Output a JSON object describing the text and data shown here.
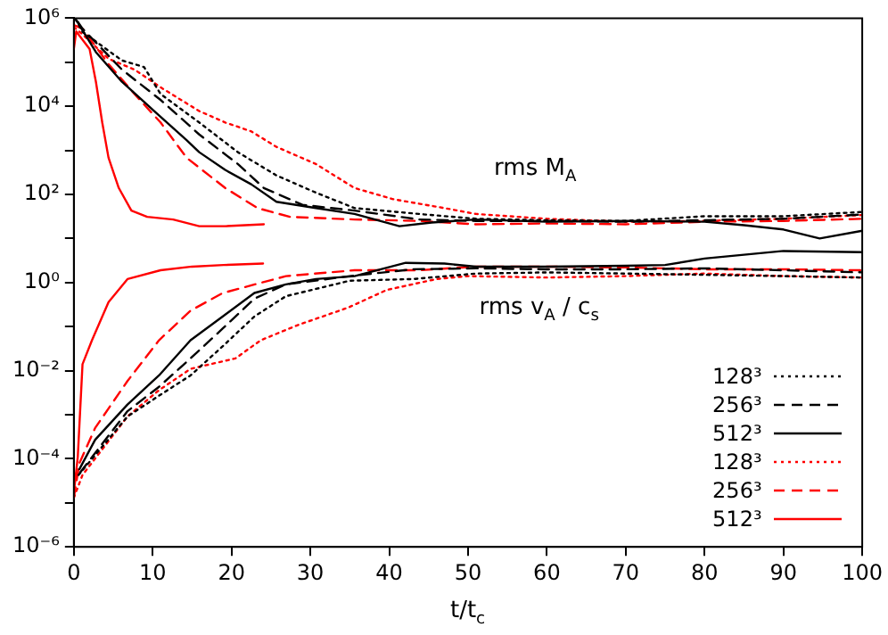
{
  "chart_data": {
    "type": "line",
    "xlabel": "t/t$_{c}$",
    "xlim": [
      0,
      100
    ],
    "xticks": [
      0,
      10,
      20,
      30,
      40,
      50,
      60,
      70,
      80,
      90,
      100
    ],
    "log": "y",
    "ylim": [
      1e-06,
      1000000.0
    ],
    "yticks": [
      {
        "value": 1e-06,
        "label": "10⁻⁶"
      },
      {
        "value": 1e-05,
        "label": null
      },
      {
        "value": 0.0001,
        "label": "10⁻⁴"
      },
      {
        "value": 0.001,
        "label": null
      },
      {
        "value": 0.01,
        "label": "10⁻²"
      },
      {
        "value": 0.1,
        "label": null
      },
      {
        "value": 1,
        "label": "10⁰"
      },
      {
        "value": 10,
        "label": null
      },
      {
        "value": 100,
        "label": "10²"
      },
      {
        "value": 1000,
        "label": null
      },
      {
        "value": 10000,
        "label": "10⁴"
      },
      {
        "value": 100000,
        "label": null
      },
      {
        "value": 1000000,
        "label": "10⁶"
      }
    ],
    "legend": "bottom right",
    "marker": "none",
    "annotations": [
      "rms M$_{A}$",
      "rms v$_{A}$ / c$_{s}$"
    ],
    "series": [
      {
        "name": "128³",
        "color": "#000000",
        "line_style": "dotted",
        "x": [
          0.2,
          1.1,
          6.1,
          8.9,
          11,
          15.9,
          20.8,
          25.7,
          30.7,
          35.6,
          43.8,
          51,
          60,
          70,
          80,
          90,
          100
        ],
        "values": [
          960000,
          490000,
          110000,
          78000,
          19000,
          4300,
          910,
          270,
          110,
          49,
          36,
          28,
          26,
          25,
          32,
          32,
          40
        ]
      },
      {
        "name": "256³",
        "color": "#000000",
        "line_style": "dashed",
        "x": [
          0.5,
          1.1,
          6.1,
          11,
          15.9,
          20.8,
          24.1,
          29,
          35.6,
          43.8,
          51,
          60,
          70,
          80,
          90,
          100
        ],
        "values": [
          830000,
          580000,
          68000,
          14000,
          2300,
          490,
          140,
          58,
          43,
          27,
          25,
          25,
          24,
          26,
          28,
          35
        ]
      },
      {
        "name": "512³",
        "color": "#000000",
        "line_style": "solid",
        "x": [
          0.3,
          2.8,
          6.1,
          10.2,
          14.3,
          15.9,
          19.2,
          22.5,
          25.7,
          30.7,
          35.6,
          41.3,
          45.4,
          51,
          60,
          70,
          80,
          85,
          90,
          94.6,
          100
        ],
        "values": [
          910000,
          170000,
          36000,
          7800,
          1700,
          910,
          360,
          170,
          68,
          49,
          36,
          19,
          23,
          27,
          24,
          25,
          24,
          20,
          16,
          10,
          15
        ]
      },
      {
        "name": "128³",
        "color": "#ff0000",
        "line_style": "dotted",
        "x": [
          0,
          1.1,
          4.4,
          7.7,
          11,
          15.9,
          19.2,
          22.5,
          25.7,
          30.7,
          35.6,
          40.5,
          47,
          51,
          60,
          70,
          80,
          90,
          100
        ],
        "values": [
          630000,
          430000,
          120000,
          68000,
          27000,
          7800,
          4300,
          2700,
          1200,
          490,
          140,
          78,
          49,
          36,
          28,
          24,
          25,
          28,
          34
        ]
      },
      {
        "name": "256³",
        "color": "#ff0000",
        "line_style": "dashed",
        "x": [
          0,
          1.1,
          4.4,
          7.7,
          11,
          14.3,
          19.2,
          23.3,
          27.4,
          35.6,
          43.8,
          51,
          60,
          70,
          80,
          90,
          100
        ],
        "values": [
          700000,
          580000,
          91000,
          19000,
          4300,
          680,
          140,
          49,
          31,
          27,
          25,
          21,
          22,
          21,
          24,
          25,
          28
        ]
      },
      {
        "name": "512³",
        "color": "#ff0000",
        "line_style": "solid",
        "x": [
          0,
          0.3,
          2,
          2.8,
          3.6,
          4.4,
          5.7,
          7.3,
          9.3,
          12.6,
          15.9,
          19.2,
          24.1
        ],
        "values": [
          200000,
          500000,
          200000,
          36000,
          4300,
          680,
          140,
          43,
          31,
          27,
          19,
          19,
          21
        ]
      },
      {
        "color": "#000000",
        "line_style": "dotted",
        "x": [
          0.6,
          6.8,
          10.8,
          14.8,
          18.9,
          22.9,
          26.9,
          35,
          43,
          51,
          60,
          70,
          80,
          90,
          100
        ],
        "values": [
          4.3e-05,
          0.00091,
          0.0027,
          0.0078,
          0.036,
          0.17,
          0.49,
          1.1,
          1.2,
          1.6,
          1.7,
          1.6,
          1.5,
          1.4,
          1.3
        ]
      },
      {
        "color": "#000000",
        "line_style": "dashed",
        "x": [
          0.8,
          6.8,
          10.8,
          14.8,
          18.9,
          22.9,
          26.9,
          35,
          43,
          51,
          60,
          70,
          80,
          90,
          100
        ],
        "values": [
          4.9e-05,
          0.0012,
          0.0043,
          0.019,
          0.091,
          0.43,
          0.91,
          1.4,
          2.0,
          2.1,
          2.0,
          2.0,
          2.1,
          1.9,
          1.7
        ]
      },
      {
        "color": "#000000",
        "line_style": "solid",
        "x": [
          0.7,
          2.7,
          6.8,
          10.8,
          14.8,
          18.9,
          22.9,
          26.9,
          30.7,
          35.6,
          42.1,
          47,
          51,
          60,
          70,
          75,
          80,
          90,
          100
        ],
        "values": [
          5.8e-05,
          0.00027,
          0.0017,
          0.0078,
          0.049,
          0.17,
          0.58,
          0.91,
          1.2,
          1.4,
          2.8,
          2.7,
          2.3,
          2.3,
          2.4,
          2.5,
          3.5,
          5.2,
          4.9
        ]
      },
      {
        "color": "#ff0000",
        "line_style": "dotted",
        "x": [
          0,
          1.1,
          6.8,
          10.8,
          14.8,
          20.5,
          23.7,
          28.5,
          34.8,
          39.7,
          46,
          50,
          60,
          70,
          80,
          90,
          100
        ],
        "values": [
          1.3e-05,
          4.3e-05,
          0.00091,
          0.0036,
          0.011,
          0.019,
          0.049,
          0.11,
          0.27,
          0.68,
          1.2,
          1.4,
          1.3,
          1.4,
          1.6,
          1.4,
          1.3
        ]
      },
      {
        "color": "#ff0000",
        "line_style": "dashed",
        "x": [
          0,
          0.7,
          2.7,
          6.8,
          10.8,
          14.8,
          18.9,
          26.9,
          35.6,
          43.8,
          51,
          60,
          70,
          80,
          90,
          100
        ],
        "values": [
          1.3e-05,
          7.9e-05,
          0.0005,
          0.0058,
          0.049,
          0.23,
          0.58,
          1.4,
          1.9,
          1.9,
          2.3,
          2.3,
          2.2,
          2.0,
          2.0,
          1.9
        ]
      },
      {
        "color": "#ff0000",
        "line_style": "solid",
        "x": [
          0,
          0.5,
          1.1,
          2.3,
          4.4,
          6.8,
          11,
          15,
          19,
          24
        ],
        "values": [
          1.7e-05,
          0.00011,
          0.014,
          0.049,
          0.36,
          1.2,
          1.9,
          2.3,
          2.5,
          2.7
        ]
      }
    ]
  }
}
